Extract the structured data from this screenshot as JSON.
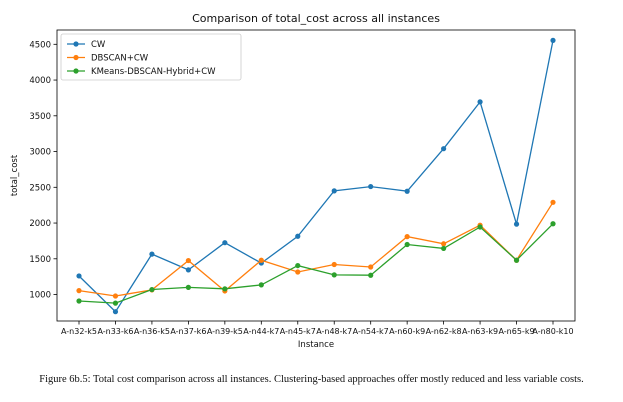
{
  "chart_data": {
    "type": "line",
    "title": "Comparison of total_cost across all instances",
    "xlabel": "Instance",
    "ylabel": "total_cost",
    "categories": [
      "A-n32-k5",
      "A-n33-k6",
      "A-n36-k5",
      "A-n37-k6",
      "A-n39-k5",
      "A-n44-k7",
      "A-n45-k7",
      "A-n48-k7",
      "A-n54-k7",
      "A-n60-k9",
      "A-n62-k8",
      "A-n63-k9",
      "A-n65-k9",
      "A-n80-k10"
    ],
    "ylim": [
      630,
      4700
    ],
    "yticks": [
      1000,
      1500,
      2000,
      2500,
      3000,
      3500,
      4000,
      4500
    ],
    "grid": false,
    "legend_position": "top-left",
    "series": [
      {
        "name": "CW",
        "color": "#1f77b4",
        "values": [
          1260,
          760,
          1565,
          1345,
          1725,
          1440,
          1815,
          2450,
          2510,
          2445,
          3040,
          3695,
          1985,
          4555
        ]
      },
      {
        "name": "DBSCAN+CW",
        "color": "#ff7f0e",
        "values": [
          1055,
          980,
          1065,
          1475,
          1050,
          1480,
          1315,
          1420,
          1385,
          1810,
          1710,
          1970,
          1480,
          2290
        ]
      },
      {
        "name": "KMeans-DBSCAN-Hybrid+CW",
        "color": "#2ca02c",
        "values": [
          910,
          880,
          1070,
          1100,
          1080,
          1135,
          1405,
          1275,
          1270,
          1700,
          1645,
          1945,
          1480,
          1990
        ]
      }
    ]
  },
  "caption": "Figure 6b.5: Total cost comparison across all instances. Clustering-based approaches offer mostly reduced and less variable costs."
}
